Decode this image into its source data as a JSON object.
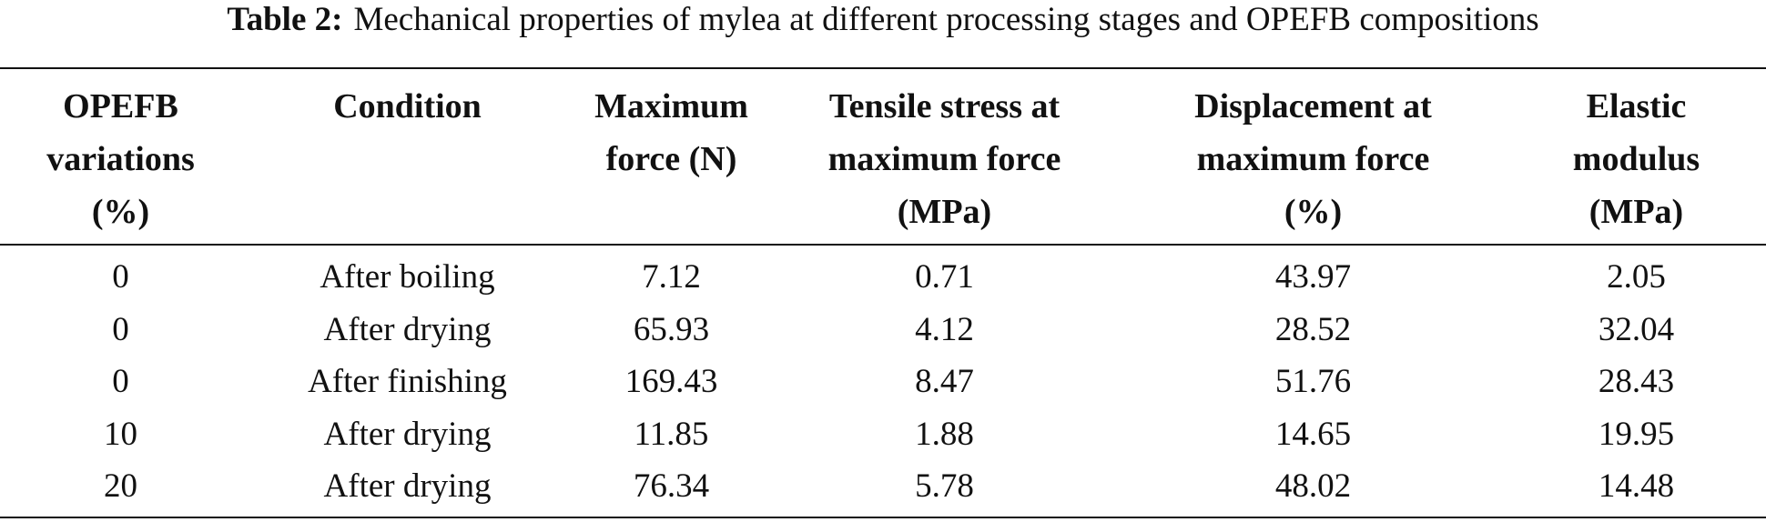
{
  "caption": {
    "label": "Table 2:",
    "text": "Mechanical properties of mylea at different processing stages and OPEFB compositions"
  },
  "table": {
    "headers": [
      [
        "OPEFB",
        "variations",
        "(%)"
      ],
      [
        "Condition"
      ],
      [
        "Maximum",
        "force (N)"
      ],
      [
        "Tensile stress at",
        "maximum force",
        "(MPa)"
      ],
      [
        "Displacement at",
        "maximum force",
        "(%)"
      ],
      [
        "Elastic",
        "modulus",
        "(MPa)"
      ]
    ],
    "rows": [
      [
        "0",
        "After boiling",
        "7.12",
        "0.71",
        "43.97",
        "2.05"
      ],
      [
        "0",
        "After drying",
        "65.93",
        "4.12",
        "28.52",
        "32.04"
      ],
      [
        "0",
        "After finishing",
        "169.43",
        "8.47",
        "51.76",
        "28.43"
      ],
      [
        "10",
        "After drying",
        "11.85",
        "1.88",
        "14.65",
        "19.95"
      ],
      [
        "20",
        "After drying",
        "76.34",
        "5.78",
        "48.02",
        "14.48"
      ]
    ]
  }
}
